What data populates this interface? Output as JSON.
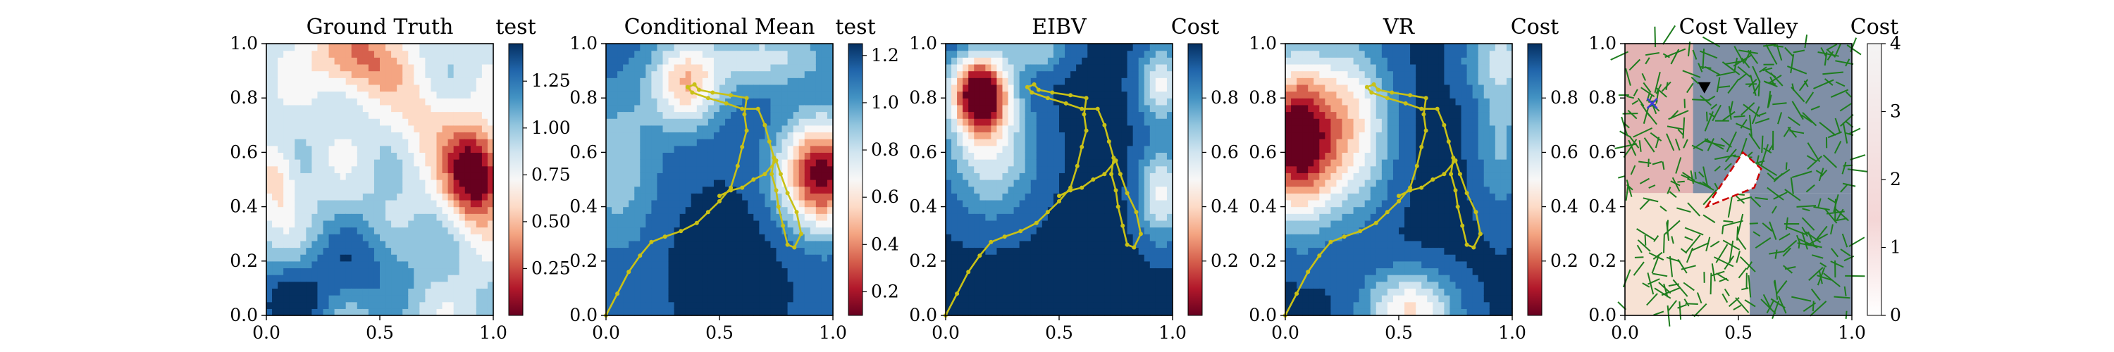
{
  "colors": {
    "rdbu": [
      "#67001f",
      "#b2182b",
      "#d6604d",
      "#f4a582",
      "#fddbc7",
      "#f7f7f7",
      "#d1e5f0",
      "#92c5de",
      "#4393c3",
      "#2166ac",
      "#053061"
    ],
    "path": "#c9c117",
    "tree": "#1e7d1e",
    "obstacle": "#cc0000",
    "waypoint": "#000000",
    "start": "#3b3bd6"
  },
  "chart_data": [
    {
      "type": "heatmap",
      "title": "Ground Truth",
      "colorbar_label": "test",
      "xlim": [
        0,
        1
      ],
      "ylim": [
        0,
        1
      ],
      "x_ticks": [
        "0.0",
        "0.5",
        "1.0"
      ],
      "y_ticks": [
        "0.0",
        "0.2",
        "0.4",
        "0.6",
        "0.8",
        "1.0"
      ],
      "colorbar_range": [
        0.0,
        1.45
      ],
      "colorbar_ticks": [
        "0.25",
        "0.50",
        "0.75",
        "1.00",
        "1.25"
      ],
      "colorbar_tick_values": [
        0.25,
        0.5,
        0.75,
        1.0,
        1.25
      ]
    },
    {
      "type": "heatmap",
      "title": "Conditional Mean",
      "colorbar_label": "test",
      "xlim": [
        0,
        1
      ],
      "ylim": [
        0,
        1
      ],
      "x_ticks": [
        "0.0",
        "0.5",
        "1.0"
      ],
      "y_ticks": [
        "0.0",
        "0.2",
        "0.4",
        "0.6",
        "0.8",
        "1.0"
      ],
      "colorbar_range": [
        0.1,
        1.25
      ],
      "colorbar_ticks": [
        "0.2",
        "0.4",
        "0.6",
        "0.8",
        "1.0",
        "1.2"
      ],
      "colorbar_tick_values": [
        0.2,
        0.4,
        0.6,
        0.8,
        1.0,
        1.2
      ],
      "path": [
        [
          0.0,
          0.0
        ],
        [
          0.05,
          0.08
        ],
        [
          0.1,
          0.16
        ],
        [
          0.15,
          0.22
        ],
        [
          0.2,
          0.27
        ],
        [
          0.26,
          0.29
        ],
        [
          0.33,
          0.31
        ],
        [
          0.4,
          0.34
        ],
        [
          0.45,
          0.38
        ],
        [
          0.5,
          0.42
        ],
        [
          0.55,
          0.47
        ],
        [
          0.58,
          0.55
        ],
        [
          0.6,
          0.62
        ],
        [
          0.62,
          0.68
        ],
        [
          0.61,
          0.74
        ],
        [
          0.62,
          0.8
        ],
        [
          0.55,
          0.81
        ],
        [
          0.47,
          0.82
        ],
        [
          0.41,
          0.83
        ],
        [
          0.39,
          0.85
        ],
        [
          0.36,
          0.84
        ],
        [
          0.38,
          0.82
        ],
        [
          0.45,
          0.8
        ],
        [
          0.53,
          0.78
        ],
        [
          0.6,
          0.76
        ],
        [
          0.67,
          0.76
        ],
        [
          0.7,
          0.7
        ],
        [
          0.72,
          0.64
        ],
        [
          0.74,
          0.58
        ],
        [
          0.73,
          0.52
        ],
        [
          0.75,
          0.46
        ],
        [
          0.76,
          0.4
        ],
        [
          0.78,
          0.33
        ],
        [
          0.8,
          0.26
        ],
        [
          0.83,
          0.25
        ],
        [
          0.86,
          0.3
        ],
        [
          0.84,
          0.38
        ],
        [
          0.8,
          0.45
        ],
        [
          0.77,
          0.52
        ],
        [
          0.75,
          0.57
        ],
        [
          0.7,
          0.52
        ],
        [
          0.65,
          0.5
        ],
        [
          0.6,
          0.47
        ],
        [
          0.55,
          0.46
        ],
        [
          0.5,
          0.44
        ]
      ]
    },
    {
      "type": "heatmap",
      "title": "EIBV",
      "colorbar_label": "Cost",
      "xlim": [
        0,
        1
      ],
      "ylim": [
        0,
        1
      ],
      "x_ticks": [
        "0.0",
        "0.5",
        "1.0"
      ],
      "y_ticks": [
        "0.0",
        "0.2",
        "0.4",
        "0.6",
        "0.8",
        "1.0"
      ],
      "colorbar_range": [
        0.0,
        1.0
      ],
      "colorbar_ticks": [
        "0.2",
        "0.4",
        "0.6",
        "0.8"
      ],
      "colorbar_tick_values": [
        0.2,
        0.4,
        0.6,
        0.8
      ],
      "path": [
        [
          0.0,
          0.0
        ],
        [
          0.05,
          0.08
        ],
        [
          0.1,
          0.16
        ],
        [
          0.15,
          0.22
        ],
        [
          0.2,
          0.27
        ],
        [
          0.26,
          0.29
        ],
        [
          0.33,
          0.31
        ],
        [
          0.4,
          0.34
        ],
        [
          0.45,
          0.38
        ],
        [
          0.5,
          0.42
        ],
        [
          0.55,
          0.47
        ],
        [
          0.58,
          0.55
        ],
        [
          0.6,
          0.62
        ],
        [
          0.62,
          0.68
        ],
        [
          0.61,
          0.74
        ],
        [
          0.62,
          0.8
        ],
        [
          0.55,
          0.81
        ],
        [
          0.47,
          0.82
        ],
        [
          0.41,
          0.83
        ],
        [
          0.39,
          0.85
        ],
        [
          0.36,
          0.84
        ],
        [
          0.38,
          0.82
        ],
        [
          0.45,
          0.8
        ],
        [
          0.53,
          0.78
        ],
        [
          0.6,
          0.76
        ],
        [
          0.67,
          0.76
        ],
        [
          0.7,
          0.7
        ],
        [
          0.72,
          0.64
        ],
        [
          0.74,
          0.58
        ],
        [
          0.73,
          0.52
        ],
        [
          0.75,
          0.46
        ],
        [
          0.76,
          0.4
        ],
        [
          0.78,
          0.33
        ],
        [
          0.8,
          0.26
        ],
        [
          0.83,
          0.25
        ],
        [
          0.86,
          0.3
        ],
        [
          0.84,
          0.38
        ],
        [
          0.8,
          0.45
        ],
        [
          0.77,
          0.52
        ],
        [
          0.75,
          0.57
        ],
        [
          0.7,
          0.52
        ],
        [
          0.65,
          0.5
        ],
        [
          0.6,
          0.47
        ],
        [
          0.55,
          0.46
        ],
        [
          0.5,
          0.44
        ]
      ]
    },
    {
      "type": "heatmap",
      "title": "VR",
      "colorbar_label": "Cost",
      "xlim": [
        0,
        1
      ],
      "ylim": [
        0,
        1
      ],
      "x_ticks": [
        "0.0",
        "0.5",
        "1.0"
      ],
      "y_ticks": [
        "0.0",
        "0.2",
        "0.4",
        "0.6",
        "0.8",
        "1.0"
      ],
      "colorbar_range": [
        0.0,
        1.0
      ],
      "colorbar_ticks": [
        "0.2",
        "0.4",
        "0.6",
        "0.8"
      ],
      "colorbar_tick_values": [
        0.2,
        0.4,
        0.6,
        0.8
      ],
      "path": [
        [
          0.0,
          0.0
        ],
        [
          0.05,
          0.08
        ],
        [
          0.1,
          0.16
        ],
        [
          0.15,
          0.22
        ],
        [
          0.2,
          0.27
        ],
        [
          0.26,
          0.29
        ],
        [
          0.33,
          0.31
        ],
        [
          0.4,
          0.34
        ],
        [
          0.45,
          0.38
        ],
        [
          0.5,
          0.42
        ],
        [
          0.55,
          0.47
        ],
        [
          0.58,
          0.55
        ],
        [
          0.6,
          0.62
        ],
        [
          0.62,
          0.68
        ],
        [
          0.61,
          0.74
        ],
        [
          0.62,
          0.8
        ],
        [
          0.55,
          0.81
        ],
        [
          0.47,
          0.82
        ],
        [
          0.41,
          0.83
        ],
        [
          0.39,
          0.85
        ],
        [
          0.36,
          0.84
        ],
        [
          0.38,
          0.82
        ],
        [
          0.45,
          0.8
        ],
        [
          0.53,
          0.78
        ],
        [
          0.6,
          0.76
        ],
        [
          0.67,
          0.76
        ],
        [
          0.7,
          0.7
        ],
        [
          0.72,
          0.64
        ],
        [
          0.74,
          0.58
        ],
        [
          0.73,
          0.52
        ],
        [
          0.75,
          0.46
        ],
        [
          0.76,
          0.4
        ],
        [
          0.78,
          0.33
        ],
        [
          0.8,
          0.26
        ],
        [
          0.83,
          0.25
        ],
        [
          0.86,
          0.3
        ],
        [
          0.84,
          0.38
        ],
        [
          0.8,
          0.45
        ],
        [
          0.77,
          0.52
        ],
        [
          0.75,
          0.57
        ],
        [
          0.7,
          0.52
        ],
        [
          0.65,
          0.5
        ],
        [
          0.6,
          0.47
        ],
        [
          0.55,
          0.46
        ],
        [
          0.5,
          0.44
        ]
      ]
    },
    {
      "type": "heatmap",
      "title": "Cost Valley",
      "colorbar_label": "Cost",
      "xlim": [
        0,
        1
      ],
      "ylim": [
        0,
        1
      ],
      "x_ticks": [
        "0.0",
        "0.5",
        "1.0"
      ],
      "y_ticks": [
        "0.0",
        "0.2",
        "0.4",
        "0.6",
        "0.8",
        "1.0"
      ],
      "colorbar_range": [
        0,
        4
      ],
      "colorbar_ticks": [
        "0",
        "1",
        "2",
        "3",
        "4"
      ],
      "colorbar_tick_values": [
        0,
        1,
        2,
        3,
        4
      ],
      "obstacle": [
        [
          0.36,
          0.4
        ],
        [
          0.52,
          0.6
        ],
        [
          0.6,
          0.54
        ],
        [
          0.57,
          0.47
        ]
      ],
      "waypoint": [
        0.35,
        0.84
      ],
      "start": [
        0.12,
        0.78
      ]
    }
  ]
}
